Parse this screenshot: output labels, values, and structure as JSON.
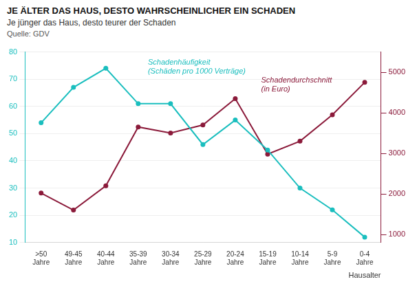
{
  "chart_data": {
    "type": "line",
    "title": "JE ÄLTER DAS HAUS, DESTO WAHRSCHEINLICHER EIN SCHADEN",
    "subtitle": "Je jünger das Haus, desto teurer der Schaden",
    "source": "Quelle: GDV",
    "x_label": "Hausalter",
    "categories": [
      ">50\nJahre",
      "49-45\nJahre",
      "40-44\nJahre",
      "35-39\nJahre",
      "30-34\nJahre",
      "25-29\nJahre",
      "20-24\nJahre",
      "15-19\nJahre",
      "10-14\nJahre",
      "5-9\nJahre",
      "0-4\nJahre"
    ],
    "series": [
      {
        "color": "#1ABEBE",
        "values": [
          54,
          67,
          74,
          61,
          61,
          46,
          55,
          44,
          30,
          22,
          12
        ]
      },
      {
        "color": "#8B1A3A",
        "values": [
          2020,
          1600,
          2200,
          3650,
          3500,
          3700,
          4350,
          2980,
          3300,
          3950,
          4750
        ],
        "axis": "y2"
      }
    ],
    "ylim": [
      10,
      80
    ],
    "yticks": [
      10,
      20,
      30,
      40,
      50,
      60,
      70,
      80
    ],
    "y2lim": [
      800,
      5500
    ],
    "y2ticks": [
      1000,
      2000,
      3000,
      4000,
      5000
    ],
    "grid": true,
    "marker": "circle",
    "line_style": "solid",
    "annotations": [
      {
        "text": "Schadenhäufigkeit",
        "color": "#1ABEBE"
      },
      {
        "text": "(Schäden pro 1000 Verträge)",
        "color": "#1ABEBE"
      },
      {
        "text": "Schadendurchschnitt",
        "color": "#8B1A3A"
      },
      {
        "text": "(in Euro)",
        "color": "#8B1A3A"
      }
    ]
  }
}
